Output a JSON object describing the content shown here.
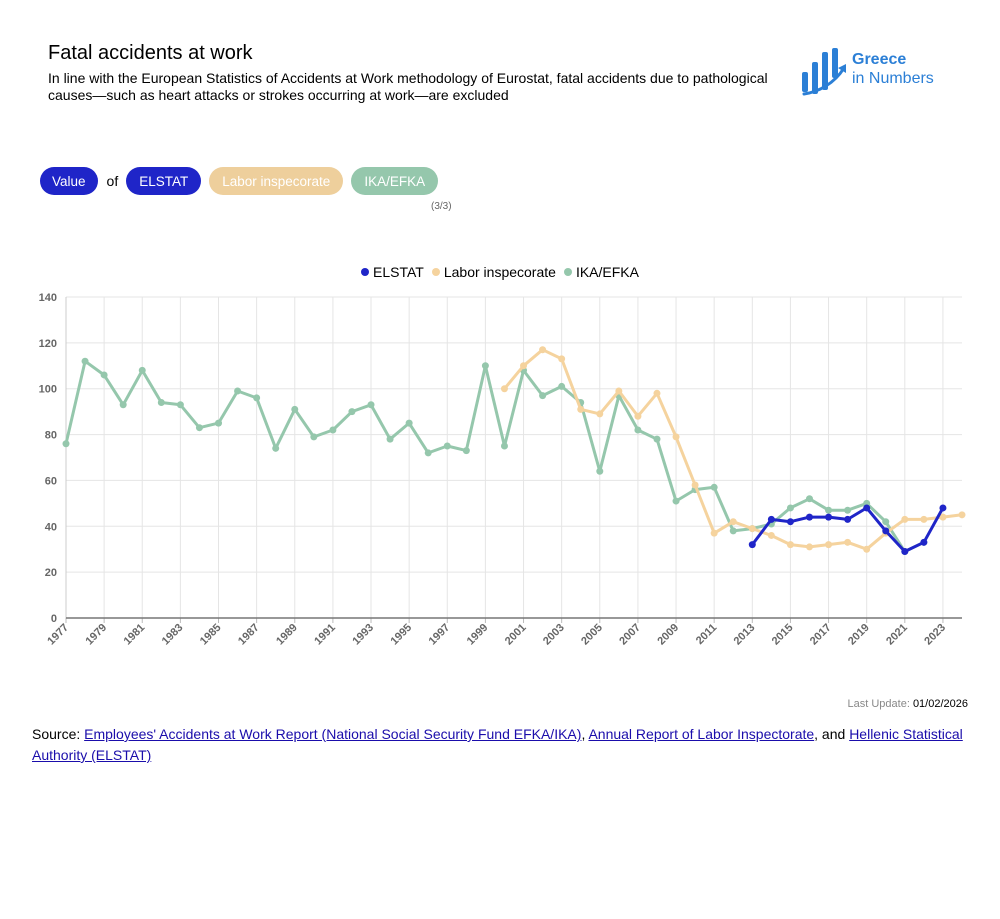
{
  "header": {
    "title": "Fatal accidents at work",
    "subtitle": "In line with the European Statistics of Accidents at Work methodology of Eurostat, fatal accidents due to pathological causes—such as heart attacks or strokes occurring at work—are excluded"
  },
  "logo": {
    "line1": "Greece",
    "line2": "in Numbers",
    "color": "#2b7fd6"
  },
  "selector": {
    "value_label": "Value",
    "of_label": "of",
    "options": [
      "ELSTAT",
      "Labor inspecorate",
      "IKA/EFKA"
    ],
    "pager": "(3/3)"
  },
  "footer": {
    "last_update_label": "Last Update:",
    "last_update_value": "01/02/2026",
    "source_prefix": "Source: ",
    "source_link1": "Employees' Accidents at Work Report (National Social Security Fund EFKA/IKA)",
    "source_sep1": ", ",
    "source_link2": "Annual Report of Labor Inspectorate",
    "source_sep2": ", and ",
    "source_link3": "Hellenic Statistical Authority (ELSTAT)"
  },
  "chart_data": {
    "type": "line",
    "title": "",
    "xlabel": "",
    "ylabel": "",
    "x_range": [
      1977,
      2024
    ],
    "ylim": [
      0,
      140
    ],
    "y_ticks": [
      0,
      20,
      40,
      60,
      80,
      100,
      120,
      140
    ],
    "x_tick_labels": [
      "1977",
      "1979",
      "1981",
      "1983",
      "1985",
      "1987",
      "1989",
      "1991",
      "1993",
      "1995",
      "1997",
      "1999",
      "2001",
      "2003",
      "2005",
      "2007",
      "2009",
      "2011",
      "2013",
      "2015",
      "2017",
      "2019",
      "2021",
      "2023"
    ],
    "grid": true,
    "legend_position": "top-center",
    "series": [
      {
        "name": "IKA/EFKA",
        "color": "#95c7ac",
        "x": [
          1977,
          1978,
          1979,
          1980,
          1981,
          1982,
          1983,
          1984,
          1985,
          1986,
          1987,
          1988,
          1989,
          1990,
          1991,
          1992,
          1993,
          1994,
          1995,
          1996,
          1997,
          1998,
          1999,
          2000,
          2001,
          2002,
          2003,
          2004,
          2005,
          2006,
          2007,
          2008,
          2009,
          2010,
          2011,
          2012,
          2013,
          2014,
          2015,
          2016,
          2017,
          2018,
          2019,
          2020,
          2021,
          2022
        ],
        "y": [
          76,
          112,
          106,
          93,
          108,
          94,
          93,
          83,
          85,
          99,
          96,
          74,
          91,
          79,
          82,
          90,
          93,
          78,
          85,
          72,
          75,
          73,
          110,
          75,
          108,
          97,
          101,
          94,
          64,
          97,
          82,
          78,
          51,
          56,
          57,
          38,
          39,
          41,
          48,
          52,
          47,
          47,
          50,
          42,
          29,
          33
        ]
      },
      {
        "name": "Labor inspecorate",
        "color": "#f5d39e",
        "x": [
          2000,
          2001,
          2002,
          2003,
          2004,
          2005,
          2006,
          2007,
          2008,
          2009,
          2010,
          2011,
          2012,
          2013,
          2014,
          2015,
          2016,
          2017,
          2018,
          2019,
          2020,
          2021,
          2022,
          2023,
          2024
        ],
        "y": [
          100,
          110,
          117,
          113,
          91,
          89,
          99,
          88,
          98,
          79,
          58,
          37,
          42,
          39,
          36,
          32,
          31,
          32,
          33,
          30,
          37,
          43,
          43,
          44,
          45
        ]
      },
      {
        "name": "ELSTAT",
        "color": "#1f25c8",
        "x": [
          2013,
          2014,
          2015,
          2016,
          2017,
          2018,
          2019,
          2020,
          2021,
          2022,
          2023
        ],
        "y": [
          32,
          43,
          42,
          44,
          44,
          43,
          48,
          38,
          29,
          33,
          48
        ]
      }
    ]
  }
}
